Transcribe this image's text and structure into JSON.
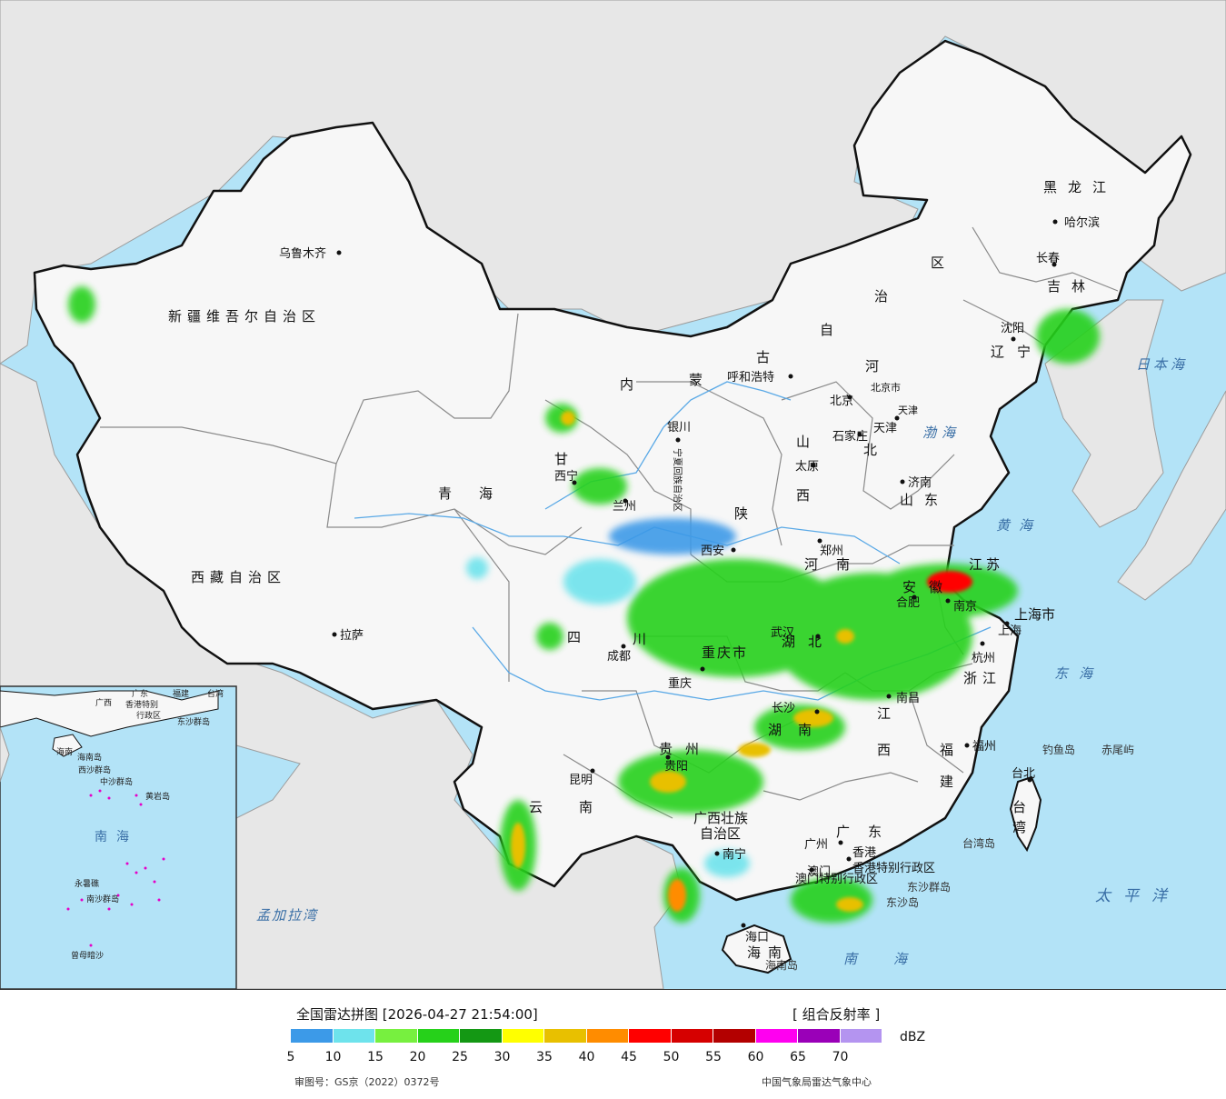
{
  "map": {
    "labels": {
      "xinjiang": "新疆维吾尔自治区",
      "xizang": "西藏自治区",
      "qinghai": "青海",
      "neimenggu": [
        "内",
        "蒙",
        "古",
        "自",
        "治",
        "区"
      ],
      "heilongjiang": "黑龙江",
      "jilin": "吉林",
      "liaoning": "辽宁",
      "hebei": [
        "河",
        "北"
      ],
      "shanxi": [
        "山",
        "西"
      ],
      "shandong": "山东",
      "shaanxi": "陕",
      "henan": "河南",
      "gansu": "甘",
      "sichuan": [
        "四",
        "川"
      ],
      "yunnan": "云南",
      "guizhou": "贵州",
      "hubei": "湖北",
      "hunan": "湖南",
      "jiangxi": [
        "江",
        "西"
      ],
      "anhui": "安徽",
      "jiangsu": "江苏",
      "zhejiang": "浙江",
      "fujian": [
        "福",
        "建"
      ],
      "guangdong": "广东",
      "guangxi": [
        "广西壮族",
        "自治区"
      ],
      "hainan": [
        "海",
        "南"
      ],
      "chongqing": "重庆市",
      "shanghai": "上海市",
      "taiwan": [
        "台",
        "湾"
      ],
      "xianggang": "香港特别行政区",
      "aomen": "澳门特别行政区",
      "ningxia": "宁夏回族自治区",
      "tianjin_lbl": "天津",
      "beijing_lbl": "北京市"
    },
    "cities": [
      {
        "name": "乌鲁木齐"
      },
      {
        "name": "拉萨"
      },
      {
        "name": "西宁"
      },
      {
        "name": "兰州"
      },
      {
        "name": "银川"
      },
      {
        "name": "呼和浩特"
      },
      {
        "name": "北京"
      },
      {
        "name": "天津"
      },
      {
        "name": "石家庄"
      },
      {
        "name": "太原"
      },
      {
        "name": "济南"
      },
      {
        "name": "郑州"
      },
      {
        "name": "西安"
      },
      {
        "name": "成都"
      },
      {
        "name": "重庆"
      },
      {
        "name": "贵阳"
      },
      {
        "name": "昆明"
      },
      {
        "name": "南宁"
      },
      {
        "name": "广州"
      },
      {
        "name": "澳门"
      },
      {
        "name": "香港"
      },
      {
        "name": "海口"
      },
      {
        "name": "长沙"
      },
      {
        "name": "武汉"
      },
      {
        "name": "南昌"
      },
      {
        "name": "合肥"
      },
      {
        "name": "南京"
      },
      {
        "name": "上海"
      },
      {
        "name": "杭州"
      },
      {
        "name": "福州"
      },
      {
        "name": "台北"
      },
      {
        "name": "沈阳"
      },
      {
        "name": "长春"
      },
      {
        "name": "哈尔滨"
      }
    ],
    "seas": {
      "japan_sea": "日本海",
      "bohai": "渤海",
      "yellow_sea": "黄海",
      "east_sea": "东海",
      "pacific": "太平洋",
      "south_sea": "南海",
      "bengal": "孟加拉湾"
    },
    "islands": {
      "diaoyu": "钓鱼岛",
      "chiwei": "赤尾屿",
      "taiwan_island": "台湾岛",
      "dongsha_islands": "东沙群岛",
      "dongsha_island": "东沙岛",
      "hainan_island": "海南岛"
    },
    "inset": {
      "south_sea": "南海",
      "labels": [
        "广西",
        "广东",
        "福建",
        "台湾",
        "香港特别",
        "行政区",
        "海南",
        "海南岛",
        "东沙群岛",
        "西沙群岛",
        "中沙群岛",
        "黄岩岛",
        "永暑礁",
        "南沙群岛",
        "曾母暗沙"
      ]
    },
    "colors": {
      "ocean": "#b3e3f7",
      "land_foreign": "#e7e7e7",
      "land_china": "#f7f7f7",
      "border": "#111111",
      "province_border": "#8a8a8a",
      "river": "#5aa9e6"
    }
  },
  "legend": {
    "title": "全国雷达拼图 [2026-04-27 21:54:00]",
    "product": "[ 组合反射率 ]",
    "unit": "dBZ",
    "ticks": [
      "5",
      "10",
      "15",
      "20",
      "25",
      "30",
      "35",
      "40",
      "45",
      "50",
      "55",
      "60",
      "65",
      "70"
    ],
    "colors": [
      "#3c9ae8",
      "#6ee3ec",
      "#77f03f",
      "#26d11a",
      "#149814",
      "#ffff00",
      "#e8c000",
      "#ff8c00",
      "#ff0000",
      "#d60000",
      "#b30000",
      "#ff00f0",
      "#9a00b8",
      "#b494f0"
    ],
    "approval": "审图号：GS京（2022）0372号",
    "source": "中国气象局雷达气象中心"
  }
}
